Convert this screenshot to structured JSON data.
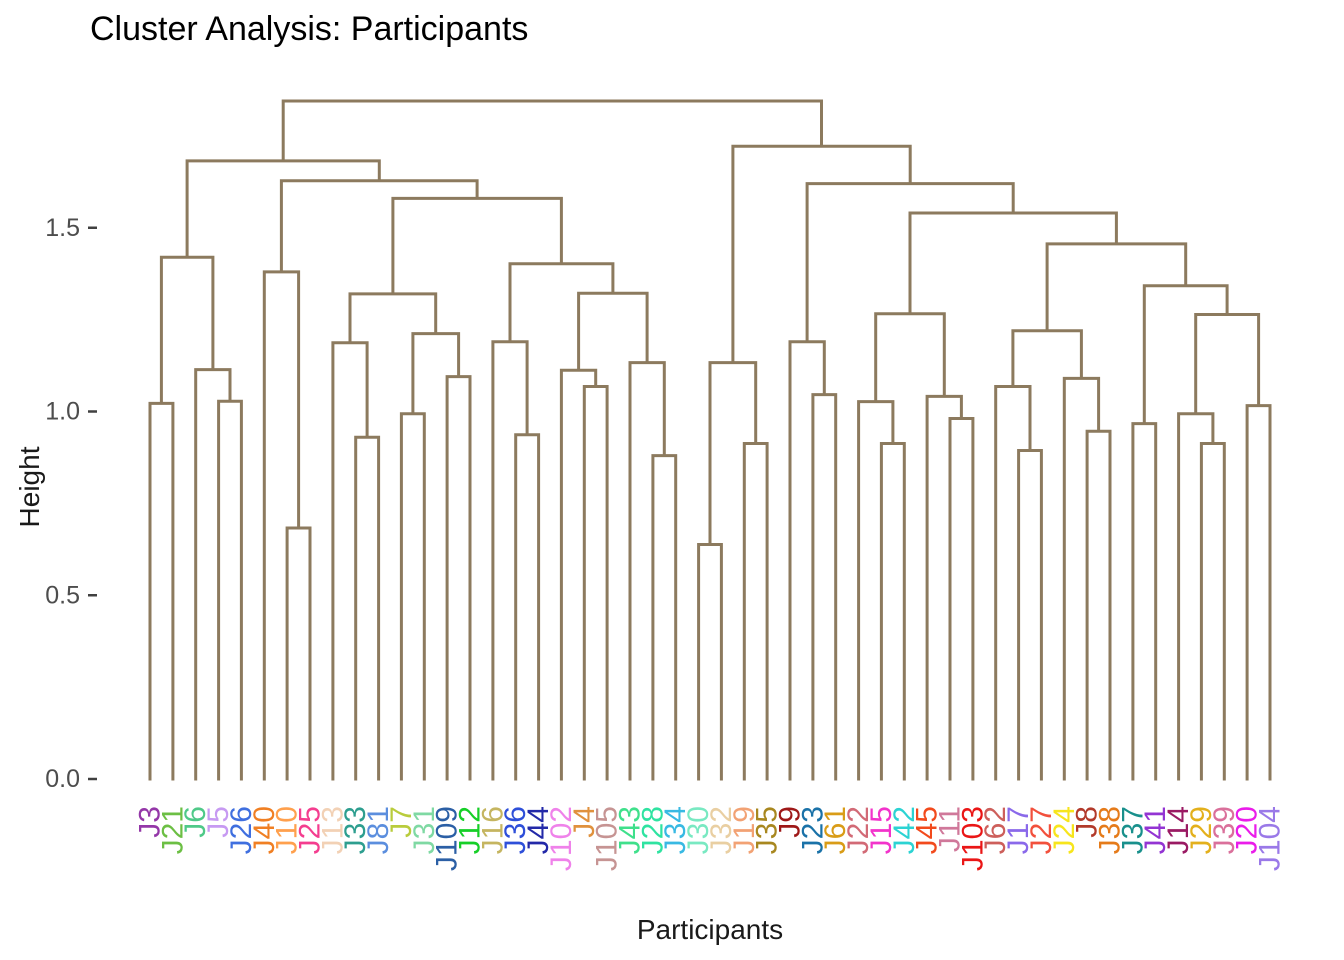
{
  "title": "Cluster Analysis: Participants",
  "chart_data": {
    "type": "dendrogram",
    "title": "Cluster Analysis: Participants",
    "xlabel": "Participants",
    "ylabel": "Height",
    "ylim": [
      0,
      1.9
    ],
    "y_ticks": [
      0.0,
      0.5,
      1.0,
      1.5
    ],
    "y_tick_labels": [
      "0.0",
      "0.5",
      "1.0",
      "1.5"
    ],
    "grid": "off",
    "line_color": "#8c7a5e",
    "tick_mark_color": "#404040",
    "tick_text_color": "#4d4d4d",
    "leaf_order": [
      "J3",
      "J21",
      "J6",
      "J5",
      "J26",
      "J40",
      "J10",
      "J25",
      "J13",
      "J33",
      "J81",
      "J7",
      "J31",
      "J109",
      "J12",
      "J16",
      "J36",
      "J44",
      "J102",
      "J4",
      "J105",
      "J43",
      "J28",
      "J34",
      "J30",
      "J32",
      "J19",
      "J35",
      "J9",
      "J23",
      "J61",
      "J22",
      "J15",
      "J42",
      "J45",
      "J11",
      "J103",
      "J62",
      "J17",
      "J27",
      "J24",
      "J8",
      "J38",
      "J37",
      "J41",
      "J14",
      "J29",
      "J39",
      "J20",
      "J104"
    ],
    "leaf_colors": {
      "J3": "#9437a8",
      "J21": "#6cbf44",
      "J6": "#4fc988",
      "J5": "#c79af2",
      "J26": "#3f6fdf",
      "J40": "#f07f23",
      "J10": "#ffa04d",
      "J25": "#f43d8f",
      "J13": "#f2d1b5",
      "J33": "#2d9e8f",
      "J81": "#5b8ede",
      "J7": "#b9cc3c",
      "J31": "#7fd9a3",
      "J109": "#2b5fa5",
      "J12": "#16cf27",
      "J16": "#c5b560",
      "J36": "#2e4fd9",
      "J44": "#2329a8",
      "J102": "#ef82ea",
      "J4": "#e0913d",
      "J105": "#c69493",
      "J43": "#3fe08b",
      "J28": "#2fe3a1",
      "J34": "#38b9e3",
      "J30": "#79e9c2",
      "J32": "#e9cfa2",
      "J19": "#f2a274",
      "J35": "#a8871f",
      "J9": "#9e1818",
      "J23": "#1a72a8",
      "J61": "#d99c17",
      "J22": "#d26a76",
      "J15": "#f233cb",
      "J42": "#2cd3d3",
      "J45": "#f24a1c",
      "J11": "#d0789a",
      "J103": "#ea1616",
      "J62": "#cd5f5b",
      "J17": "#8a69ea",
      "J27": "#f2503c",
      "J24": "#f7e51c",
      "J8": "#b23a2b",
      "J38": "#e57b1a",
      "J37": "#19908c",
      "J41": "#9334d3",
      "J14": "#9a1a63",
      "J29": "#e3b01c",
      "J39": "#da709b",
      "J20": "#ea1cea",
      "J104": "#9a79e8"
    },
    "tree": {
      "h": 1.845,
      "c": [
        {
          "h": 1.682,
          "c": [
            {
              "h": 1.42,
              "c": [
                {
                  "h": 1.022,
                  "c": [
                    "J3",
                    "J21"
                  ]
                },
                {
                  "h": 1.114,
                  "c": [
                    "J6",
                    {
                      "h": 1.028,
                      "c": [
                        "J5",
                        "J26"
                      ]
                    }
                  ]
                }
              ]
            },
            {
              "h": 1.628,
              "c": [
                {
                  "h": 1.38,
                  "c": [
                    "J40",
                    {
                      "h": 0.683,
                      "c": [
                        "J10",
                        "J25"
                      ]
                    }
                  ]
                },
                {
                  "h": 1.58,
                  "c": [
                    {
                      "h": 1.32,
                      "c": [
                        {
                          "h": 1.187,
                          "c": [
                            "J13",
                            {
                              "h": 0.93,
                              "c": [
                                "J33",
                                "J81"
                              ]
                            }
                          ]
                        },
                        {
                          "h": 1.212,
                          "c": [
                            {
                              "h": 0.994,
                              "c": [
                                "J7",
                                "J31"
                              ]
                            },
                            {
                              "h": 1.095,
                              "c": [
                                "J109",
                                "J12"
                              ]
                            }
                          ]
                        }
                      ]
                    },
                    {
                      "h": 1.402,
                      "c": [
                        {
                          "h": 1.19,
                          "c": [
                            "J16",
                            {
                              "h": 0.937,
                              "c": [
                                "J36",
                                "J44"
                              ]
                            }
                          ]
                        },
                        {
                          "h": 1.322,
                          "c": [
                            {
                              "h": 1.112,
                              "c": [
                                "J102",
                                {
                                  "h": 1.068,
                                  "c": [
                                    "J4",
                                    "J105"
                                  ]
                                }
                              ]
                            },
                            {
                              "h": 1.133,
                              "c": [
                                "J43",
                                {
                                  "h": 0.88,
                                  "c": [
                                    "J28",
                                    "J34"
                                  ]
                                }
                              ]
                            }
                          ]
                        }
                      ]
                    }
                  ]
                }
              ]
            }
          ]
        },
        {
          "h": 1.722,
          "c": [
            {
              "h": 1.133,
              "c": [
                {
                  "h": 0.638,
                  "c": [
                    "J30",
                    "J32"
                  ]
                },
                {
                  "h": 0.913,
                  "c": [
                    "J19",
                    "J35"
                  ]
                }
              ]
            },
            {
              "h": 1.62,
              "c": [
                {
                  "h": 1.19,
                  "c": [
                    "J9",
                    {
                      "h": 1.046,
                      "c": [
                        "J23",
                        "J61"
                      ]
                    }
                  ]
                },
                {
                  "h": 1.54,
                  "c": [
                    {
                      "h": 1.266,
                      "c": [
                        {
                          "h": 1.027,
                          "c": [
                            "J22",
                            {
                              "h": 0.913,
                              "c": [
                                "J15",
                                "J42"
                              ]
                            }
                          ]
                        },
                        {
                          "h": 1.041,
                          "c": [
                            "J45",
                            {
                              "h": 0.981,
                              "c": [
                                "J11",
                                "J103"
                              ]
                            }
                          ]
                        }
                      ]
                    },
                    {
                      "h": 1.456,
                      "c": [
                        {
                          "h": 1.22,
                          "c": [
                            {
                              "h": 1.068,
                              "c": [
                                "J62",
                                {
                                  "h": 0.894,
                                  "c": [
                                    "J17",
                                    "J27"
                                  ]
                                }
                              ]
                            },
                            {
                              "h": 1.09,
                              "c": [
                                "J24",
                                {
                                  "h": 0.946,
                                  "c": [
                                    "J8",
                                    "J38"
                                  ]
                                }
                              ]
                            }
                          ]
                        },
                        {
                          "h": 1.342,
                          "c": [
                            {
                              "h": 0.967,
                              "c": [
                                "J37",
                                "J41"
                              ]
                            },
                            {
                              "h": 1.264,
                              "c": [
                                {
                                  "h": 0.994,
                                  "c": [
                                    "J14",
                                    {
                                      "h": 0.913,
                                      "c": [
                                        "J29",
                                        "J39"
                                      ]
                                    }
                                  ]
                                },
                                {
                                  "h": 1.016,
                                  "c": [
                                    "J20",
                                    "J104"
                                  ]
                                }
                              ]
                            }
                          ]
                        }
                      ]
                    }
                  ]
                }
              ]
            }
          ]
        }
      ]
    }
  }
}
